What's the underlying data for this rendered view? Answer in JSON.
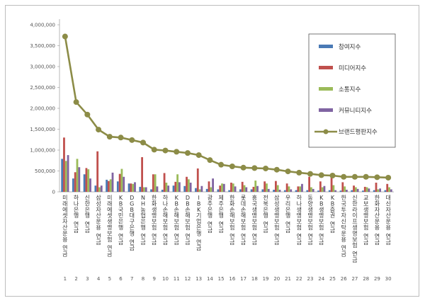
{
  "chart_data": {
    "type": "bar",
    "categories": [
      "미래에셋자산운용 연금",
      "하나은행 연금",
      "신한은행 연금",
      "삼성자산운용 연금",
      "미래에셋생명보험 연금",
      "KB국민은행 연금",
      "DGB대구은행 연금",
      "NH농협은행 연금",
      "한화생명보험 연금",
      "하나손해보험 연금",
      "KB손해보험 연금",
      "DB손해보험 연금",
      "IBK기업은행 연금",
      "광주은행 연금",
      "제주은행 연금",
      "한화손해보험 연금",
      "롯데손해보험 연금",
      "흥국생명보험 연금",
      "전북은행 연금",
      "삼성생명보험 연금",
      "우리은행 연금",
      "하나생명보험 연금",
      "동양생명보험 연금",
      "KB생명보험 연금",
      "KB증권 연금",
      "한국투자신탁운용 연금",
      "신한라이프생명보험 연금",
      "교보생명보험 연금",
      "한화자산운용 연금",
      "대신자산운용 연금"
    ],
    "rank_labels": [
      "1",
      "2",
      "3",
      "4",
      "5",
      "6",
      "7",
      "8",
      "9",
      "10",
      "11",
      "12",
      "13",
      "14",
      "15",
      "16",
      "17",
      "18",
      "19",
      "20",
      "21",
      "22",
      "23",
      "24",
      "25",
      "26",
      "27",
      "28",
      "29",
      "30"
    ],
    "series": [
      {
        "name": "참여지수",
        "color": "#4a7ab5",
        "values": [
          790000,
          320000,
          420000,
          150000,
          290000,
          250000,
          200000,
          120000,
          60000,
          50000,
          150000,
          140000,
          90000,
          70000,
          60000,
          40000,
          60000,
          60000,
          60000,
          50000,
          40000,
          40000,
          40000,
          30000,
          40000,
          30000,
          40000,
          30000,
          40000,
          40000
        ]
      },
      {
        "name": "미디어지수",
        "color": "#c0504d",
        "values": [
          1300000,
          470000,
          570000,
          970000,
          260000,
          430000,
          200000,
          830000,
          420000,
          450000,
          240000,
          360000,
          560000,
          250000,
          150000,
          220000,
          240000,
          120000,
          250000,
          260000,
          200000,
          130000,
          360000,
          250000,
          400000,
          230000,
          150000,
          120000,
          220000,
          190000
        ]
      },
      {
        "name": "소통지수",
        "color": "#9bbb59",
        "values": [
          740000,
          790000,
          540000,
          110000,
          300000,
          550000,
          190000,
          110000,
          420000,
          220000,
          420000,
          300000,
          60000,
          110000,
          200000,
          200000,
          160000,
          270000,
          200000,
          160000,
          130000,
          130000,
          110000,
          110000,
          160000,
          130000,
          110000,
          110000,
          60000,
          110000
        ]
      },
      {
        "name": "커뮤니티지수",
        "color": "#8064a2",
        "values": [
          880000,
          590000,
          320000,
          150000,
          460000,
          360000,
          230000,
          110000,
          130000,
          150000,
          230000,
          220000,
          140000,
          320000,
          190000,
          130000,
          110000,
          140000,
          70000,
          50000,
          60000,
          190000,
          70000,
          140000,
          40000,
          50000,
          70000,
          80000,
          80000,
          60000
        ]
      },
      {
        "name": "브랜드평판지수",
        "color": "#8c8c47",
        "values": [
          3720000,
          2150000,
          1850000,
          1490000,
          1320000,
          1300000,
          1240000,
          1180000,
          1010000,
          990000,
          960000,
          930000,
          880000,
          760000,
          650000,
          610000,
          580000,
          570000,
          560000,
          530000,
          490000,
          460000,
          430000,
          400000,
          390000,
          360000,
          360000,
          360000,
          350000,
          340000
        ]
      }
    ],
    "ylim": [
      0,
      4000000
    ],
    "yticks": [
      "0",
      "500,000",
      "1,000,000",
      "1,500,000",
      "2,000,000",
      "2,500,000",
      "3,000,000",
      "3,500,000",
      "4,000,000"
    ],
    "legend_position": "right",
    "grid": true
  }
}
